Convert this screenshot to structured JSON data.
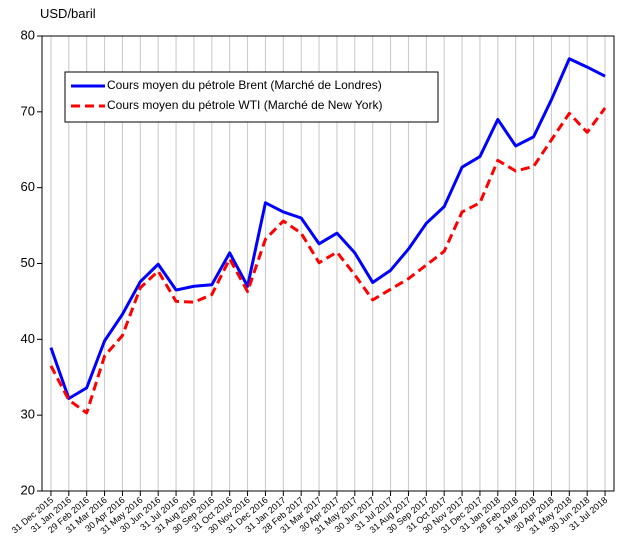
{
  "chart_data": {
    "type": "line",
    "y_label": "USD/baril",
    "categories": [
      "31 Dec 2015",
      "31 Jan 2016",
      "29 Feb 2016",
      "31 Mar 2016",
      "30 Apr 2016",
      "31 May 2016",
      "30 Jun 2016",
      "31 Jul 2016",
      "31 Aug 2016",
      "30 Sep 2016",
      "31 Oct 2016",
      "30 Nov 2016",
      "31 Dec 2016",
      "31 Jan 2017",
      "28 Feb 2017",
      "31 Mar 2017",
      "30 Apr 2017",
      "31 May 2017",
      "30 Jun 2017",
      "31 Jul 2017",
      "31 Aug 2017",
      "30 Sep 2017",
      "31 Oct 2017",
      "30 Nov 2017",
      "31 Dec 2017",
      "31 Jan 2018",
      "28 Feb 2018",
      "31 Mar 2018",
      "30 Apr 2018",
      "31 May 2018",
      "30 Jun 2018",
      "31 Jul 2018"
    ],
    "series": [
      {
        "name": "Cours moyen du pétrole Brent (Marché de Londres)",
        "color": "#0000ff",
        "dash": false,
        "values": [
          38.9,
          32.2,
          33.6,
          39.8,
          43.3,
          47.6,
          49.9,
          46.5,
          47.0,
          47.2,
          51.4,
          47.0,
          58.0,
          56.8,
          56.0,
          52.6,
          54.0,
          51.4,
          47.5,
          49.1,
          51.9,
          55.3,
          57.5,
          62.7,
          64.1,
          69.0,
          65.5,
          66.7,
          71.6,
          77.0,
          75.9,
          74.7
        ]
      },
      {
        "name": "Cours moyen du pétrole WTI (Marché de New York)",
        "color": "#ff0000",
        "dash": true,
        "values": [
          36.5,
          32.0,
          30.3,
          37.8,
          40.5,
          46.8,
          49.0,
          45.0,
          44.9,
          45.9,
          50.6,
          46.3,
          53.2,
          55.6,
          54.0,
          50.1,
          51.5,
          48.5,
          45.2,
          46.6,
          48.0,
          49.8,
          51.6,
          56.8,
          58.0,
          63.6,
          62.2,
          62.8,
          66.3,
          69.8,
          67.3,
          70.5
        ]
      }
    ],
    "ylim": [
      20,
      80
    ],
    "yticks": [
      20,
      30,
      40,
      50,
      60,
      70,
      80
    ],
    "grid": true,
    "legend": "upper left"
  }
}
